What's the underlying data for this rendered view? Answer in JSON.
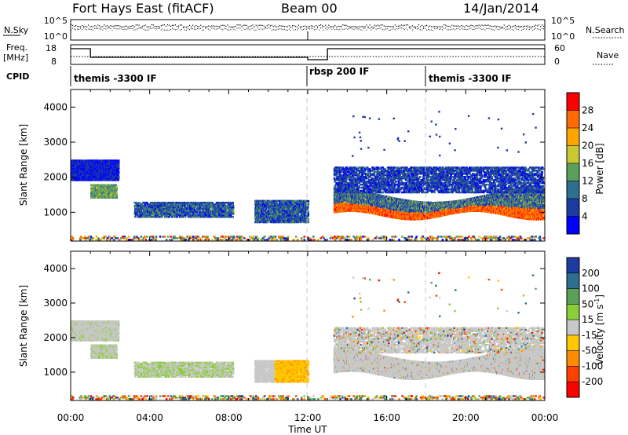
{
  "header": {
    "station": "Fort Hays East (fitACF)",
    "beam": "Beam 00",
    "date": "14/Jan/2014"
  },
  "top_panels": {
    "nsky_label": "N.Sky",
    "nsearch_label": "N.Search",
    "freq_label": "Freq.",
    "freq_unit": "[MHz]",
    "nave_label": "Nave",
    "cpid_label": "CPID",
    "noise_ticks": [
      "10^5",
      "10^0"
    ],
    "freq_ticks": [
      "18",
      "8"
    ],
    "nave_ticks": [
      "60",
      "0"
    ]
  },
  "cpid_segments": [
    {
      "label": "themis -3300 IF",
      "start_hour": 0
    },
    {
      "label": "rbsp 200 IF",
      "start_hour": 12
    },
    {
      "label": "themis -3300 IF",
      "start_hour": 18
    }
  ],
  "chart_data": [
    {
      "type": "heatmap",
      "name": "power-panel",
      "ylabel": "Slant Range [km]",
      "colorbar_label": "Power [dB]",
      "colorbar_ticks": [
        "28",
        "24",
        "20",
        "16",
        "12",
        "8",
        "4"
      ],
      "colorbar_colors": [
        "#ff0000",
        "#ff6a00",
        "#ffa500",
        "#c8c832",
        "#5aa05a",
        "#2e6e8e",
        "#1e3ca0",
        "#0000ff"
      ],
      "y_ticks": [
        "4000",
        "3000",
        "2000",
        "1000"
      ],
      "ylim": [
        180,
        4500
      ],
      "xlim": [
        0,
        24
      ]
    },
    {
      "type": "heatmap",
      "name": "velocity-panel",
      "ylabel": "Slant Range [km]",
      "colorbar_label": "Velocity [m s",
      "colorbar_label_sup": "-1",
      "colorbar_label_end": "]",
      "colorbar_ticks": [
        "200",
        "100",
        "50",
        "15",
        "-15",
        "-50",
        "-100",
        "-200"
      ],
      "colorbar_colors": [
        "#1e3ca0",
        "#2e6e8e",
        "#5aa05a",
        "#8ccd3c",
        "#c8c8c8",
        "#ffc800",
        "#ff8c00",
        "#ff4000",
        "#ff0000"
      ],
      "y_ticks": [
        "4000",
        "3000",
        "2000",
        "1000"
      ],
      "ylim": [
        180,
        4500
      ],
      "xlim": [
        0,
        24
      ]
    }
  ],
  "x_axis": {
    "ticks": [
      "00:00",
      "04:00",
      "08:00",
      "12:00",
      "16:00",
      "20:00",
      "00:00"
    ],
    "label": "Time UT"
  }
}
